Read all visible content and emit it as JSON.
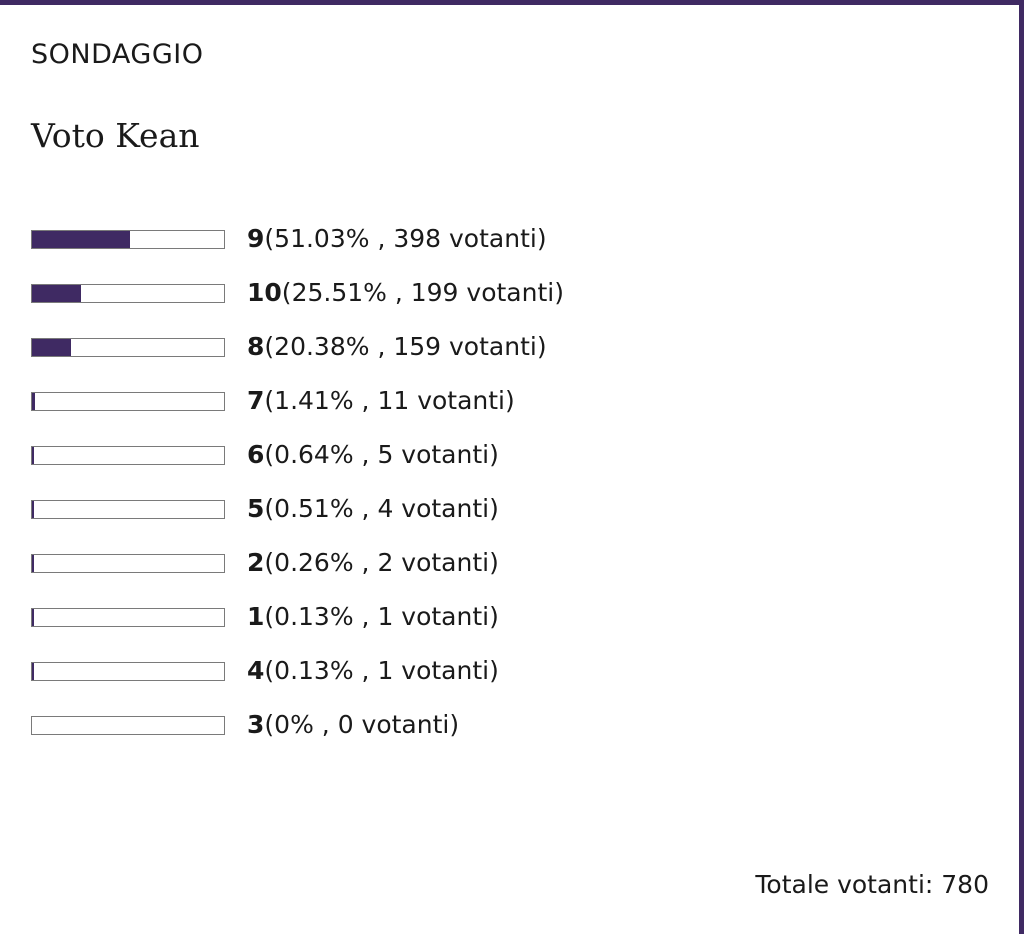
{
  "poll": {
    "label": "SONDAGGIO",
    "title": "Voto Kean",
    "accent_color": "#3f2a63",
    "options": [
      {
        "value": "9",
        "percent_text": "51.03%",
        "voters_text": "398 votanti",
        "fraction": 0.5103
      },
      {
        "value": "10",
        "percent_text": "25.51%",
        "voters_text": "199 votanti",
        "fraction": 0.2551
      },
      {
        "value": "8",
        "percent_text": "20.38%",
        "voters_text": "159 votanti",
        "fraction": 0.2038
      },
      {
        "value": "7",
        "percent_text": "1.41%",
        "voters_text": "11 votanti",
        "fraction": 0.0141
      },
      {
        "value": "6",
        "percent_text": "0.64%",
        "voters_text": "5 votanti",
        "fraction": 0.0064
      },
      {
        "value": "5",
        "percent_text": "0.51%",
        "voters_text": "4 votanti",
        "fraction": 0.0051
      },
      {
        "value": "2",
        "percent_text": "0.26%",
        "voters_text": "2 votanti",
        "fraction": 0.0026
      },
      {
        "value": "1",
        "percent_text": "0.13%",
        "voters_text": "1 votanti",
        "fraction": 0.0013
      },
      {
        "value": "4",
        "percent_text": "0.13%",
        "voters_text": "1 votanti",
        "fraction": 0.0013
      },
      {
        "value": "3",
        "percent_text": "0%",
        "voters_text": "0 votanti",
        "fraction": 0
      }
    ],
    "total_label": "Totale votanti:",
    "total_value": "780"
  }
}
